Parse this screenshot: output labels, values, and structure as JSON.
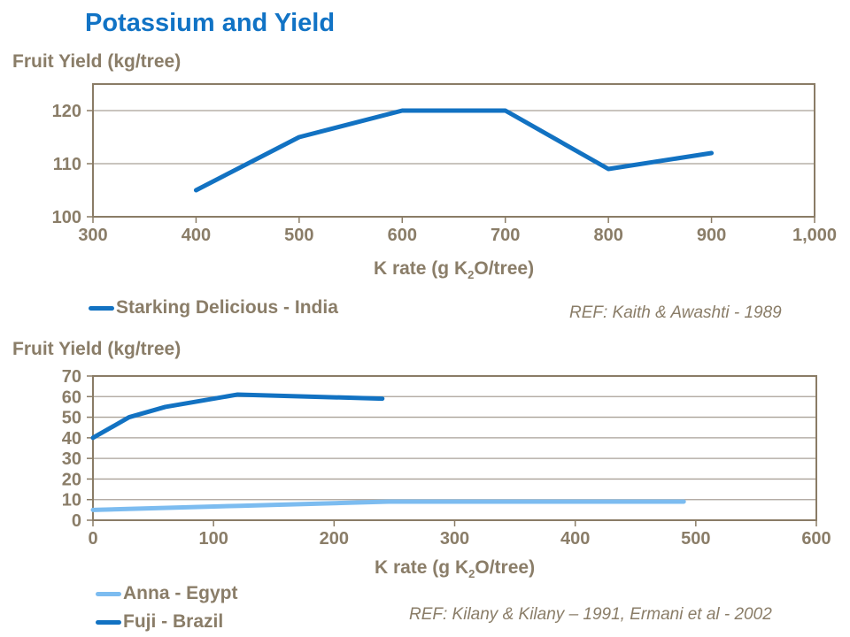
{
  "slide_title": "Potassium and Yield",
  "colors": {
    "title": "#1173C5",
    "dark_blue": "#1272C2",
    "light_blue": "#7CBCF0",
    "text": "#8A7D68",
    "axis": "#8A7C66",
    "grid": "#A9A198"
  },
  "chart_data": [
    {
      "type": "line",
      "ylabel": "Fruit Yield (kg/tree)",
      "xlabel": {
        "pre": "K rate (g K",
        "sub": "2",
        "post": "O/tree)"
      },
      "xlim": [
        300,
        1000
      ],
      "ylim": [
        100,
        125
      ],
      "xtick_values": [
        300,
        400,
        500,
        600,
        700,
        800,
        900,
        1000
      ],
      "xtick_labels": [
        "300",
        "400",
        "500",
        "600",
        "700",
        "800",
        "900",
        "1,000"
      ],
      "ytick_values": [
        100,
        110,
        120
      ],
      "ytick_labels": [
        "100",
        "110",
        "120"
      ],
      "grid": true,
      "legend_position": "bottom-left",
      "series": [
        {
          "name": "Starking Delicious - India",
          "color": "#1272C2",
          "x": [
            400,
            500,
            600,
            700,
            800,
            900
          ],
          "y": [
            105,
            115,
            120,
            120,
            109,
            112
          ]
        }
      ],
      "ref": "REF: Kaith & Awashti - 1989"
    },
    {
      "type": "line",
      "ylabel": "Fruit Yield (kg/tree)",
      "xlabel": {
        "pre": "K rate (g K",
        "sub": "2",
        "post": "O/tree)"
      },
      "xlim": [
        0,
        600
      ],
      "ylim": [
        0,
        70
      ],
      "xtick_values": [
        0,
        100,
        200,
        300,
        400,
        500,
        600
      ],
      "xtick_labels": [
        "0",
        "100",
        "200",
        "300",
        "400",
        "500",
        "600"
      ],
      "ytick_values": [
        0,
        10,
        20,
        30,
        40,
        50,
        60,
        70
      ],
      "ytick_labels": [
        "0",
        "10",
        "20",
        "30",
        "40",
        "50",
        "60",
        "70"
      ],
      "grid": true,
      "legend_position": "bottom-left",
      "series": [
        {
          "name": "Anna - Egypt",
          "color": "#7CBCF0",
          "x": [
            0,
            122,
            245,
            490
          ],
          "y": [
            5,
            7,
            9,
            9
          ]
        },
        {
          "name": "Fuji - Brazil",
          "color": "#1272C2",
          "x": [
            0,
            30,
            60,
            120,
            240
          ],
          "y": [
            40,
            50,
            55,
            61,
            59
          ]
        }
      ],
      "ref": "REF: Kilany & Kilany – 1991, Ermani et al - 2002"
    }
  ]
}
